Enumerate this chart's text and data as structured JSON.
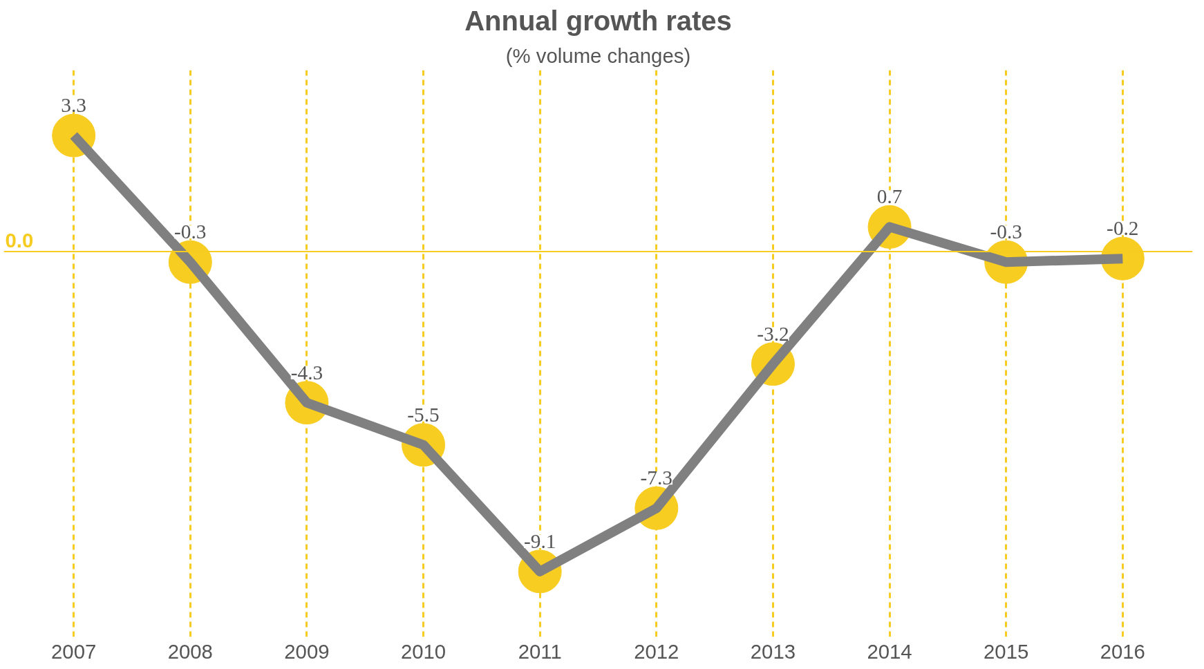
{
  "chart_data": {
    "type": "line",
    "title": "Annual growth rates",
    "subtitle": "(% volume changes)",
    "categories": [
      "2007",
      "2008",
      "2009",
      "2010",
      "2011",
      "2012",
      "2013",
      "2014",
      "2015",
      "2016"
    ],
    "series": [
      {
        "color": "#808080",
        "marker": "none",
        "values": [
          3.3,
          -0.3,
          -4.3,
          -5.5,
          -9.1,
          -7.3,
          -3.2,
          0.7,
          -0.3,
          -0.2
        ]
      },
      {
        "type": "scatter",
        "color": "#f8cd22",
        "marker": "circle",
        "values": [
          3.3,
          -0.3,
          -4.3,
          -5.5,
          -9.1,
          -7.3,
          -3.2,
          0.7,
          -0.3,
          -0.2
        ],
        "value_labels": [
          "3.3",
          "-0.3",
          "-4.3",
          "-5.5",
          "-9.1",
          "-7.3",
          "-3.2",
          "0.7",
          "-0.3",
          "-0.2"
        ]
      }
    ],
    "line_style": "solid",
    "tick_labels": "x",
    "grid": "x",
    "ref_lines": [
      {
        "axis": "y",
        "value": 0,
        "label": "0.0",
        "color": "#f5cc1f"
      }
    ]
  }
}
